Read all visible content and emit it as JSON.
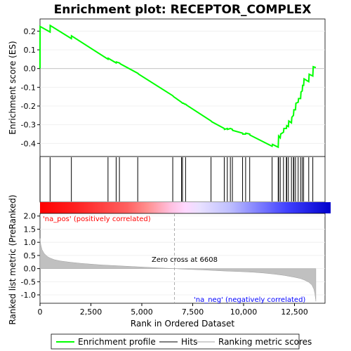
{
  "chart_data": {
    "type": "line",
    "title": "Enrichment plot: RECEPTOR_COMPLEX",
    "top_panel": {
      "ylabel": "Enrichment score (ES)",
      "ylim": [
        -0.47,
        0.265
      ],
      "yticks": [
        0.2,
        0.1,
        0.0,
        -0.1,
        -0.2,
        -0.3,
        -0.4
      ],
      "ytick_labels": [
        "0.2",
        "0.1",
        "0.0",
        "-0.1",
        "-0.2",
        "-0.3",
        "-0.4"
      ],
      "series": [
        {
          "name": "Enrichment profile",
          "color": "#00ff00",
          "x": [
            0,
            1,
            5,
            495,
            500,
            1540,
            1545,
            3340,
            3350,
            3740,
            3750,
            3900,
            3950,
            4800,
            4850,
            6520,
            6560,
            6950,
            7000,
            7050,
            7100,
            7150,
            7200,
            8400,
            8450,
            9050,
            9060,
            9200,
            9210,
            9350,
            9360,
            9450,
            9460,
            9950,
            9960,
            10100,
            10110,
            10300,
            10310,
            11400,
            11420,
            11700,
            11720,
            11800,
            11820,
            11960,
            11980,
            12100,
            12120,
            12200,
            12220,
            12350,
            12370,
            12450,
            12470,
            12550,
            12570,
            12680,
            12700,
            12800,
            12820,
            12880,
            12900,
            12950,
            12970,
            13200,
            13220,
            13400,
            13420,
            13550
          ],
          "y": [
            0.0,
            0.11,
            0.225,
            0.195,
            0.23,
            0.16,
            0.175,
            0.05,
            0.055,
            0.03,
            0.035,
            0.03,
            0.025,
            -0.025,
            -0.03,
            -0.145,
            -0.15,
            -0.18,
            -0.185,
            -0.185,
            -0.19,
            -0.19,
            -0.195,
            -0.28,
            -0.285,
            -0.32,
            -0.325,
            -0.32,
            -0.325,
            -0.32,
            -0.32,
            -0.325,
            -0.33,
            -0.345,
            -0.35,
            -0.35,
            -0.345,
            -0.35,
            -0.355,
            -0.415,
            -0.405,
            -0.42,
            -0.36,
            -0.37,
            -0.35,
            -0.34,
            -0.32,
            -0.32,
            -0.305,
            -0.31,
            -0.28,
            -0.29,
            -0.26,
            -0.25,
            -0.22,
            -0.22,
            -0.185,
            -0.18,
            -0.16,
            -0.16,
            -0.125,
            -0.12,
            -0.09,
            -0.09,
            -0.055,
            -0.07,
            -0.03,
            -0.04,
            0.01,
            0.005
          ]
        }
      ]
    },
    "hits": {
      "label": "Hits",
      "positions": [
        1,
        495,
        1540,
        3340,
        3740,
        3900,
        4800,
        6520,
        6950,
        7000,
        7150,
        8400,
        9050,
        9200,
        9350,
        9450,
        9950,
        10100,
        10300,
        11400,
        11700,
        11720,
        11800,
        11960,
        12100,
        12120,
        12200,
        12350,
        12450,
        12470,
        12550,
        12680,
        12800,
        12880,
        12950,
        13200,
        13400
      ]
    },
    "bottom_panel": {
      "ylabel": "Ranked list metric (PreRanked)",
      "ylim": [
        -1.32,
        2.1
      ],
      "yticks": [
        2.0,
        1.5,
        1.0,
        0.5,
        0.0,
        -0.5,
        -1.0
      ],
      "ytick_labels": [
        "2.0",
        "1.5",
        "1.0",
        "0.5",
        "0.0",
        "-0.5",
        "-1.0"
      ],
      "series": [
        {
          "name": "Ranking metric scores",
          "color": "#c0c0c0",
          "x": [
            0,
            40,
            100,
            200,
            300,
            400,
            500,
            700,
            1000,
            1500,
            2000,
            2500,
            3000,
            3500,
            4000,
            5000,
            6000,
            6608,
            7000,
            8000,
            9000,
            10000,
            10500,
            11000,
            11500,
            12000,
            12500,
            12800,
            13000,
            13200,
            13350,
            13450,
            13500,
            13550
          ],
          "y": [
            1.15,
            0.9,
            0.72,
            0.58,
            0.5,
            0.44,
            0.4,
            0.34,
            0.29,
            0.24,
            0.2,
            0.17,
            0.14,
            0.12,
            0.1,
            0.06,
            0.02,
            0.0,
            -0.02,
            -0.05,
            -0.09,
            -0.12,
            -0.14,
            -0.17,
            -0.21,
            -0.26,
            -0.33,
            -0.38,
            -0.44,
            -0.52,
            -0.62,
            -0.78,
            -0.95,
            -1.25
          ]
        }
      ],
      "annotations": [
        "'na_pos' (positively correlated)",
        "Zero cross at 6608",
        "'na_neg' (negatively correlated)"
      ]
    },
    "xlabel": "Rank in Ordered Dataset",
    "xlim": [
      0,
      14000
    ],
    "xticks": [
      0,
      2500,
      5000,
      7500,
      10000,
      12500
    ],
    "xtick_labels": [
      "0",
      "2,500",
      "5,000",
      "7,500",
      "10,000",
      "12,500"
    ],
    "legend": {
      "placement": "bottom",
      "entries": [
        "Enrichment profile",
        "Hits",
        "Ranking metric scores"
      ]
    },
    "colors": {
      "profile": "#00ff00",
      "positive": "#ff0000",
      "negative": "#0000ff",
      "metric_fill": "#c0c0c0",
      "annotation_pos": "#ff0000",
      "annotation_neg": "#0000ff"
    }
  }
}
